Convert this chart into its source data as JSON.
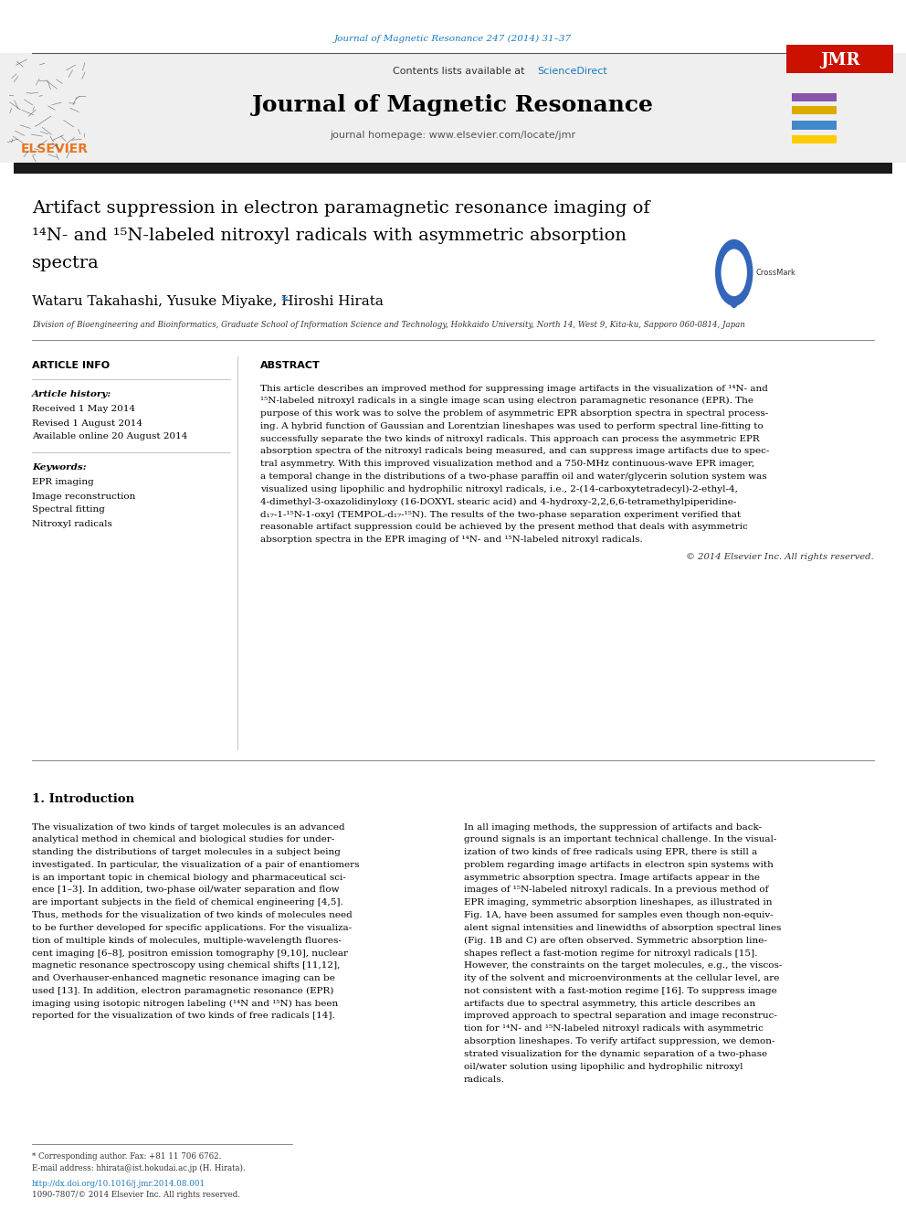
{
  "journal_ref": "Journal of Magnetic Resonance 247 (2014) 31–37",
  "science_direct": "ScienceDirect",
  "journal_name": "Journal of Magnetic Resonance",
  "homepage": "journal homepage: www.elsevier.com/locate/jmr",
  "title_line1": "Artifact suppression in electron paramagnetic resonance imaging of",
  "title_line2": "¹⁴N- and ¹⁵N-labeled nitroxyl radicals with asymmetric absorption",
  "title_line3": "spectra",
  "authors": "Wataru Takahashi, Yusuke Miyake, Hiroshi Hirata",
  "affiliation": "Division of Bioengineering and Bioinformatics, Graduate School of Information Science and Technology, Hokkaido University, North 14, West 9, Kita-ku, Sapporo 060-0814, Japan",
  "article_info_title": "ARTICLE INFO",
  "abstract_title": "ABSTRACT",
  "article_history_label": "Article history:",
  "received": "Received 1 May 2014",
  "revised": "Revised 1 August 2014",
  "available": "Available online 20 August 2014",
  "keywords_label": "Keywords:",
  "keywords": [
    "EPR imaging",
    "Image reconstruction",
    "Spectral fitting",
    "Nitroxyl radicals"
  ],
  "copyright": "© 2014 Elsevier Inc. All rights reserved.",
  "section1_title": "1. Introduction",
  "footnote1": "* Corresponding author. Fax: +81 11 706 6762.",
  "footnote2": "E-mail address: hhirata@ist.hokudai.ac.jp (H. Hirata).",
  "doi": "http://dx.doi.org/10.1016/j.jmr.2014.08.001",
  "issn": "1090-7807/© 2014 Elsevier Inc. All rights reserved.",
  "bg_color": "#ffffff",
  "header_bg": "#efefef",
  "black_bar_color": "#1a1a1a",
  "link_color": "#1a7abf",
  "elsevier_orange": "#e87722",
  "abstract_lines": [
    "This article describes an improved method for suppressing image artifacts in the visualization of ¹⁴N- and",
    "¹⁵N-labeled nitroxyl radicals in a single image scan using electron paramagnetic resonance (EPR). The",
    "purpose of this work was to solve the problem of asymmetric EPR absorption spectra in spectral process-",
    "ing. A hybrid function of Gaussian and Lorentzian lineshapes was used to perform spectral line-fitting to",
    "successfully separate the two kinds of nitroxyl radicals. This approach can process the asymmetric EPR",
    "absorption spectra of the nitroxyl radicals being measured, and can suppress image artifacts due to spec-",
    "tral asymmetry. With this improved visualization method and a 750-MHz continuous-wave EPR imager,",
    "a temporal change in the distributions of a two-phase paraffin oil and water/glycerin solution system was",
    "visualized using lipophilic and hydrophilic nitroxyl radicals, i.e., 2-(14-carboxytetradecyl)-2-ethyl-4,",
    "4-dimethyl-3-oxazolidinyloxy (16-DOXYL stearic acid) and 4-hydroxy-2,2,6,6-tetramethylpiperidine-",
    "d₁₇-1-¹⁵N-1-oxyl (TEMPOL-d₁₇-¹⁵N). The results of the two-phase separation experiment verified that",
    "reasonable artifact suppression could be achieved by the present method that deals with asymmetric",
    "absorption spectra in the EPR imaging of ¹⁴N- and ¹⁵N-labeled nitroxyl radicals."
  ],
  "intro_col1_lines": [
    "The visualization of two kinds of target molecules is an advanced",
    "analytical method in chemical and biological studies for under-",
    "standing the distributions of target molecules in a subject being",
    "investigated. In particular, the visualization of a pair of enantiomers",
    "is an important topic in chemical biology and pharmaceutical sci-",
    "ence [1–3]. In addition, two-phase oil/water separation and flow",
    "are important subjects in the field of chemical engineering [4,5].",
    "Thus, methods for the visualization of two kinds of molecules need",
    "to be further developed for specific applications. For the visualiza-",
    "tion of multiple kinds of molecules, multiple-wavelength fluores-",
    "cent imaging [6–8], positron emission tomography [9,10], nuclear",
    "magnetic resonance spectroscopy using chemical shifts [11,12],",
    "and Overhauser-enhanced magnetic resonance imaging can be",
    "used [13]. In addition, electron paramagnetic resonance (EPR)",
    "imaging using isotopic nitrogen labeling (¹⁴N and ¹⁵N) has been",
    "reported for the visualization of two kinds of free radicals [14]."
  ],
  "intro_col2_lines": [
    "In all imaging methods, the suppression of artifacts and back-",
    "ground signals is an important technical challenge. In the visual-",
    "ization of two kinds of free radicals using EPR, there is still a",
    "problem regarding image artifacts in electron spin systems with",
    "asymmetric absorption spectra. Image artifacts appear in the",
    "images of ¹⁵N-labeled nitroxyl radicals. In a previous method of",
    "EPR imaging, symmetric absorption lineshapes, as illustrated in",
    "Fig. 1A, have been assumed for samples even though non-equiv-",
    "alent signal intensities and linewidths of absorption spectral lines",
    "(Fig. 1B and C) are often observed. Symmetric absorption line-",
    "shapes reflect a fast-motion regime for nitroxyl radicals [15].",
    "However, the constraints on the target molecules, e.g., the viscos-",
    "ity of the solvent and microenvironments at the cellular level, are",
    "not consistent with a fast-motion regime [16]. To suppress image",
    "artifacts due to spectral asymmetry, this article describes an",
    "improved approach to spectral separation and image reconstruc-",
    "tion for ¹⁴N- and ¹⁵N-labeled nitroxyl radicals with asymmetric",
    "absorption lineshapes. To verify artifact suppression, we demon-",
    "strated visualization for the dynamic separation of a two-phase",
    "oil/water solution using lipophilic and hydrophilic nitroxyl",
    "radicals."
  ]
}
